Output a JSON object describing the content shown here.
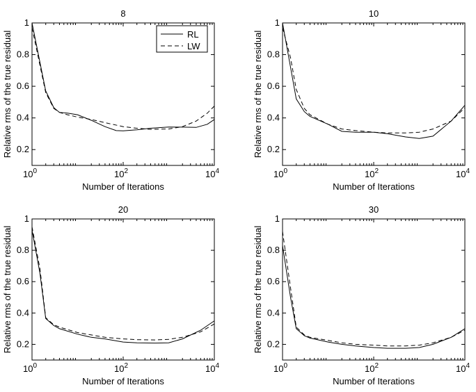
{
  "chart_data": [
    {
      "type": "line",
      "title": "8",
      "xlabel": "Number of Iterations",
      "ylabel": "Relative rms of the true residual",
      "xscale": "log",
      "xlim": [
        1,
        10000
      ],
      "ylim": [
        0.1,
        1
      ],
      "xticks": [
        1,
        100,
        10000
      ],
      "xtick_labels": [
        {
          "base": "10",
          "exp": "0"
        },
        {
          "base": "10",
          "exp": "2"
        },
        {
          "base": "10",
          "exp": "4"
        }
      ],
      "yticks": [
        0.2,
        0.4,
        0.6,
        0.8,
        1
      ],
      "ytick_labels": [
        "0.2",
        "0.4",
        "0.6",
        "0.8",
        "1"
      ],
      "legend": {
        "position": "top-right",
        "entries": [
          "RL",
          "LW"
        ]
      },
      "series": [
        {
          "name": "RL",
          "style": "solid",
          "x": [
            1,
            2,
            3,
            4,
            6,
            10,
            20,
            40,
            70,
            100,
            200,
            400,
            1000,
            2000,
            4000,
            7000,
            10000
          ],
          "y": [
            1.0,
            0.57,
            0.465,
            0.435,
            0.43,
            0.42,
            0.385,
            0.345,
            0.32,
            0.318,
            0.325,
            0.335,
            0.343,
            0.342,
            0.34,
            0.36,
            0.39
          ]
        },
        {
          "name": "LW",
          "style": "dashed",
          "x": [
            1,
            2,
            3,
            4,
            6,
            10,
            20,
            40,
            100,
            200,
            400,
            1000,
            2000,
            4000,
            7000,
            10000
          ],
          "y": [
            0.97,
            0.56,
            0.46,
            0.435,
            0.42,
            0.405,
            0.39,
            0.37,
            0.345,
            0.335,
            0.328,
            0.33,
            0.345,
            0.38,
            0.43,
            0.475
          ]
        }
      ]
    },
    {
      "type": "line",
      "title": "10",
      "xlabel": "Number of Iterations",
      "ylabel": "Relative rms of the true residual",
      "xscale": "log",
      "xlim": [
        1,
        10000
      ],
      "ylim": [
        0.1,
        1
      ],
      "xticks": [
        1,
        100,
        10000
      ],
      "xtick_labels": [
        {
          "base": "10",
          "exp": "0"
        },
        {
          "base": "10",
          "exp": "2"
        },
        {
          "base": "10",
          "exp": "4"
        }
      ],
      "yticks": [
        0.2,
        0.4,
        0.6,
        0.8,
        1
      ],
      "ytick_labels": [
        "0.2",
        "0.4",
        "0.6",
        "0.8",
        "1"
      ],
      "series": [
        {
          "name": "RL",
          "style": "solid",
          "x": [
            1,
            1.5,
            2,
            3,
            4,
            10,
            20,
            40,
            100,
            200,
            500,
            1000,
            2000,
            5000,
            10000
          ],
          "y": [
            1.0,
            0.72,
            0.52,
            0.44,
            0.41,
            0.36,
            0.315,
            0.31,
            0.31,
            0.3,
            0.28,
            0.27,
            0.285,
            0.38,
            0.48
          ]
        },
        {
          "name": "LW",
          "style": "dashed",
          "x": [
            1,
            1.5,
            2,
            3,
            4,
            10,
            20,
            40,
            100,
            200,
            500,
            1000,
            2000,
            5000,
            10000
          ],
          "y": [
            0.97,
            0.78,
            0.58,
            0.46,
            0.42,
            0.36,
            0.33,
            0.32,
            0.31,
            0.305,
            0.305,
            0.31,
            0.33,
            0.38,
            0.465
          ]
        }
      ]
    },
    {
      "type": "line",
      "title": "20",
      "xlabel": "Number of Iterations",
      "ylabel": "Relative rms of the true residual",
      "xscale": "log",
      "xlim": [
        1,
        10000
      ],
      "ylim": [
        0.1,
        1
      ],
      "xticks": [
        1,
        100,
        10000
      ],
      "xtick_labels": [
        {
          "base": "10",
          "exp": "0"
        },
        {
          "base": "10",
          "exp": "2"
        },
        {
          "base": "10",
          "exp": "4"
        }
      ],
      "yticks": [
        0.2,
        0.4,
        0.6,
        0.8,
        1
      ],
      "ytick_labels": [
        "0.2",
        "0.4",
        "0.6",
        "0.8",
        "1"
      ],
      "series": [
        {
          "name": "RL",
          "style": "solid",
          "x": [
            1,
            1.5,
            2,
            3,
            4,
            10,
            20,
            40,
            100,
            200,
            500,
            1000,
            2000,
            5000,
            10000
          ],
          "y": [
            0.93,
            0.65,
            0.365,
            0.32,
            0.3,
            0.265,
            0.245,
            0.235,
            0.215,
            0.21,
            0.208,
            0.21,
            0.235,
            0.29,
            0.35
          ]
        },
        {
          "name": "LW",
          "style": "dashed",
          "x": [
            1,
            1.5,
            2,
            3,
            4,
            10,
            20,
            40,
            100,
            200,
            500,
            1000,
            2000,
            5000,
            10000
          ],
          "y": [
            0.95,
            0.68,
            0.37,
            0.325,
            0.31,
            0.275,
            0.26,
            0.245,
            0.235,
            0.23,
            0.228,
            0.232,
            0.245,
            0.28,
            0.33
          ]
        }
      ]
    },
    {
      "type": "line",
      "title": "30",
      "xlabel": "Number of Iterations",
      "ylabel": "Relative rms of the true residual",
      "xscale": "log",
      "xlim": [
        1,
        10000
      ],
      "ylim": [
        0.1,
        1
      ],
      "xticks": [
        1,
        100,
        10000
      ],
      "xtick_labels": [
        {
          "base": "10",
          "exp": "0"
        },
        {
          "base": "10",
          "exp": "2"
        },
        {
          "base": "10",
          "exp": "4"
        }
      ],
      "yticks": [
        0.2,
        0.4,
        0.6,
        0.8,
        1
      ],
      "ytick_labels": [
        "0.2",
        "0.4",
        "0.6",
        "0.8",
        "1"
      ],
      "series": [
        {
          "name": "RL",
          "style": "solid",
          "x": [
            1,
            1.5,
            2,
            3,
            4,
            10,
            20,
            40,
            100,
            200,
            500,
            1000,
            2000,
            5000,
            10000
          ],
          "y": [
            0.83,
            0.5,
            0.3,
            0.255,
            0.24,
            0.215,
            0.2,
            0.19,
            0.18,
            0.175,
            0.175,
            0.18,
            0.2,
            0.245,
            0.3
          ]
        },
        {
          "name": "LW",
          "style": "dashed",
          "x": [
            1,
            1.5,
            2,
            3,
            4,
            10,
            20,
            40,
            100,
            200,
            500,
            1000,
            2000,
            5000,
            10000
          ],
          "y": [
            0.92,
            0.56,
            0.31,
            0.26,
            0.245,
            0.225,
            0.21,
            0.2,
            0.195,
            0.19,
            0.19,
            0.195,
            0.21,
            0.245,
            0.29
          ]
        }
      ]
    }
  ]
}
